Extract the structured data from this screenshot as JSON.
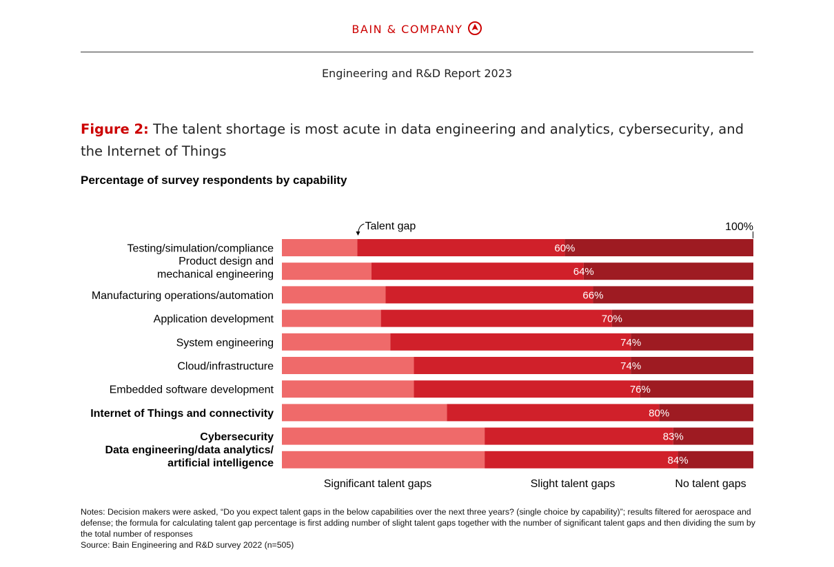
{
  "header": {
    "brand": "BAIN & COMPANY",
    "report": "Engineering and R&D Report 2023"
  },
  "figure": {
    "label": "Figure 2:",
    "title": "The talent shortage is most acute in data engineering and analytics, cybersecurity, and the Internet of Things"
  },
  "chart_data": {
    "type": "bar",
    "orientation": "horizontal",
    "stacked": true,
    "title": "Percentage of survey respondents by capability",
    "annotation": "Talent gap",
    "total_label": "100%",
    "categories": [
      "Testing/simulation/compliance",
      "Product design and mechanical engineering",
      "Manufacturing operations/automation",
      "Application development",
      "System engineering",
      "Cloud/infrastructure",
      "Embedded software development",
      "Internet of Things and connectivity",
      "Cybersecurity",
      "Data engineering/data analytics/ artificial intelligence"
    ],
    "category_lines": [
      [
        "Testing/simulation/compliance"
      ],
      [
        "Product design and",
        "mechanical engineering"
      ],
      [
        "Manufacturing operations/automation"
      ],
      [
        "Application development"
      ],
      [
        "System engineering"
      ],
      [
        "Cloud/infrastructure"
      ],
      [
        "Embedded software development"
      ],
      [
        "Internet of Things and connectivity"
      ],
      [
        "Cybersecurity"
      ],
      [
        "Data engineering/data analytics/",
        "artificial intelligence"
      ]
    ],
    "bold": [
      false,
      false,
      false,
      false,
      false,
      false,
      false,
      true,
      true,
      true
    ],
    "talent_gap": [
      60,
      64,
      66,
      70,
      74,
      74,
      76,
      80,
      83,
      84
    ],
    "talent_gap_labels": [
      "60%",
      "64%",
      "66%",
      "70%",
      "74%",
      "74%",
      "76%",
      "80%",
      "83%",
      "84%"
    ],
    "series": [
      {
        "name": "Significant talent gaps",
        "color": "#ef6a6a",
        "values": [
          16,
          19,
          22,
          21,
          23,
          28,
          28,
          35,
          43,
          43
        ]
      },
      {
        "name": "Slight talent gaps",
        "color": "#d0202a",
        "values": [
          44,
          45,
          44,
          49,
          51,
          46,
          48,
          45,
          40,
          41
        ]
      },
      {
        "name": "No talent gaps",
        "color": "#9e1b22",
        "values": [
          40,
          36,
          34,
          30,
          26,
          26,
          24,
          20,
          17,
          16
        ]
      }
    ],
    "xlim": [
      0,
      100
    ]
  },
  "notes": {
    "text": "Notes: Decision makers were asked, “Do you expect talent gaps in the below capabilities over the next three years? (single choice by capability)”; results filtered for aerospace and defense; the formula for calculating talent gap percentage is first adding number of slight talent gaps together with the number of significant talent gaps and then dividing the sum by the total number of responses",
    "source": "Source: Bain Engineering and R&D survey 2022 (n=505)"
  }
}
